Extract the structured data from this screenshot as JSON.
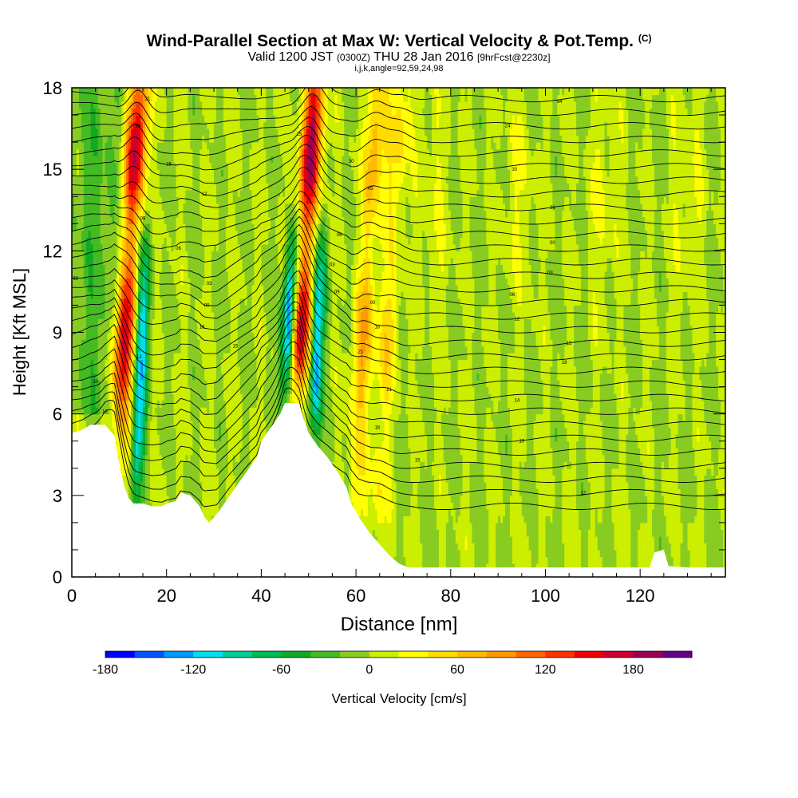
{
  "header": {
    "title": "Wind-Parallel Section at Max W: Vertical Velocity & Pot.Temp.",
    "title_mark": "(C)",
    "valid_prefix": "Valid 1200 JST",
    "valid_utc": "(0300Z)",
    "valid_date": "THU 28 Jan 2016",
    "forecast": "[9hrFcst@2230z]",
    "ijk": "i,j,k,angle=92,59,24,98"
  },
  "chart_data": {
    "type": "heatmap",
    "title": "Wind-Parallel Section at Max W: Vertical Velocity & Pot.Temp.",
    "xlabel": "Distance [nm]",
    "ylabel": "Height [Kft MSL]",
    "xlim": [
      0,
      138
    ],
    "ylim": [
      0,
      18
    ],
    "x_ticks": [
      0,
      20,
      40,
      60,
      80,
      100,
      120
    ],
    "y_ticks": [
      0,
      3,
      6,
      9,
      12,
      15,
      18
    ],
    "colorbar": {
      "label": "Vertical Velocity [cm/s]",
      "min": -180,
      "max": 220,
      "step": 20,
      "tick_values": [
        -180,
        -120,
        -60,
        0,
        60,
        120,
        180
      ],
      "tick_labels": [
        "-180",
        "-120",
        "-60",
        "0",
        "60",
        "120",
        "180"
      ],
      "colors": [
        "#0000ff",
        "#0055ff",
        "#0099ff",
        "#00ddee",
        "#00cc99",
        "#00bb55",
        "#11aa22",
        "#44bb22",
        "#88cc22",
        "#ccee00",
        "#ffff00",
        "#ffdd00",
        "#ffbb00",
        "#ff9900",
        "#ff6600",
        "#ff3300",
        "#ee0000",
        "#cc0033",
        "#990055",
        "#660088"
      ]
    },
    "terrain_kft": [
      [
        0,
        5.3
      ],
      [
        2,
        5.4
      ],
      [
        4,
        5.6
      ],
      [
        7,
        5.6
      ],
      [
        9,
        5.2
      ],
      [
        10,
        4.2
      ],
      [
        11,
        3.4
      ],
      [
        12,
        2.9
      ],
      [
        13,
        2.7
      ],
      [
        15,
        2.7
      ],
      [
        17,
        2.6
      ],
      [
        19,
        2.6
      ],
      [
        20,
        2.7
      ],
      [
        22,
        2.8
      ],
      [
        23,
        3.1
      ],
      [
        25,
        3.0
      ],
      [
        27,
        2.6
      ],
      [
        28,
        2.2
      ],
      [
        29,
        2.0
      ],
      [
        31,
        2.4
      ],
      [
        33,
        2.9
      ],
      [
        35,
        3.4
      ],
      [
        37,
        3.9
      ],
      [
        39,
        4.4
      ],
      [
        40,
        5.0
      ],
      [
        42,
        5.5
      ],
      [
        44,
        6.0
      ],
      [
        45,
        6.4
      ],
      [
        48,
        6.4
      ],
      [
        49,
        5.8
      ],
      [
        50,
        5.3
      ],
      [
        52,
        4.8
      ],
      [
        54,
        4.4
      ],
      [
        56,
        3.9
      ],
      [
        58,
        3.3
      ],
      [
        59,
        2.7
      ],
      [
        61,
        2.1
      ],
      [
        63,
        1.6
      ],
      [
        65,
        1.2
      ],
      [
        67,
        0.8
      ],
      [
        69,
        0.5
      ],
      [
        71,
        0.35
      ],
      [
        75,
        0.35
      ],
      [
        85,
        0.35
      ],
      [
        95,
        0.35
      ],
      [
        105,
        0.35
      ],
      [
        115,
        0.35
      ],
      [
        122,
        0.35
      ],
      [
        123,
        0.9
      ],
      [
        125,
        1.0
      ],
      [
        126,
        0.4
      ],
      [
        130,
        0.35
      ],
      [
        135,
        0.35
      ],
      [
        138,
        0.35
      ]
    ],
    "updraft_bands": [
      {
        "center_nm": 11.5,
        "peak_cm_s": 180
      },
      {
        "center_nm": 48.5,
        "peak_cm_s": 190
      },
      {
        "center_nm": 62,
        "peak_cm_s": 80
      },
      {
        "center_nm": 67,
        "peak_cm_s": 50
      }
    ],
    "downdraft_bands": [
      {
        "center_nm": 15,
        "peak_cm_s": -110
      },
      {
        "center_nm": 46,
        "peak_cm_s": -180
      },
      {
        "center_nm": 52,
        "peak_cm_s": -130
      }
    ],
    "contour_labels": [
      {
        "text": "21",
        "x_nm": 16,
        "y_kft": 17.6
      },
      {
        "text": "18",
        "x_nm": 14,
        "y_kft": 16.6
      },
      {
        "text": "15",
        "x_nm": 20.5,
        "y_kft": 15.2
      },
      {
        "text": "12",
        "x_nm": 28,
        "y_kft": 14.1
      },
      {
        "text": "09",
        "x_nm": 15,
        "y_kft": 13.2
      },
      {
        "text": "06",
        "x_nm": 22.5,
        "y_kft": 12.1
      },
      {
        "text": "03",
        "x_nm": 29,
        "y_kft": 10.8
      },
      {
        "text": "00",
        "x_nm": 28.5,
        "y_kft": 10.0
      },
      {
        "text": "12",
        "x_nm": 0.8,
        "y_kft": 11.0
      },
      {
        "text": "18",
        "x_nm": 27.5,
        "y_kft": 9.2
      },
      {
        "text": "15",
        "x_nm": 34.5,
        "y_kft": 8.5
      },
      {
        "text": "12",
        "x_nm": 14.2,
        "y_kft": 8.1
      },
      {
        "text": "10",
        "x_nm": 5,
        "y_kft": 7.2
      },
      {
        "text": "12",
        "x_nm": 7,
        "y_kft": 6.1
      },
      {
        "text": "15",
        "x_nm": 48,
        "y_kft": 16.3
      },
      {
        "text": "30",
        "x_nm": 59,
        "y_kft": 15.3
      },
      {
        "text": "45",
        "x_nm": 63,
        "y_kft": 14.3
      },
      {
        "text": "06",
        "x_nm": 56.5,
        "y_kft": 12.6
      },
      {
        "text": "03",
        "x_nm": 55,
        "y_kft": 11.5
      },
      {
        "text": "09",
        "x_nm": 56,
        "y_kft": 10.5
      },
      {
        "text": "00",
        "x_nm": 63.5,
        "y_kft": 10.1
      },
      {
        "text": "18",
        "x_nm": 64.5,
        "y_kft": 9.2
      },
      {
        "text": "21",
        "x_nm": 61,
        "y_kft": 8.3
      },
      {
        "text": "21",
        "x_nm": 67,
        "y_kft": 6.9
      },
      {
        "text": "18",
        "x_nm": 64.5,
        "y_kft": 5.5
      },
      {
        "text": "15",
        "x_nm": 73,
        "y_kft": 4.3
      },
      {
        "text": "84",
        "x_nm": 103,
        "y_kft": 17.5
      },
      {
        "text": "24",
        "x_nm": 92,
        "y_kft": 16.6
      },
      {
        "text": "30",
        "x_nm": 93.5,
        "y_kft": 15.0
      },
      {
        "text": "36",
        "x_nm": 101.5,
        "y_kft": 13.6
      },
      {
        "text": "00",
        "x_nm": 101.5,
        "y_kft": 12.3
      },
      {
        "text": "03",
        "x_nm": 101,
        "y_kft": 11.2
      },
      {
        "text": "06",
        "x_nm": 93,
        "y_kft": 10.4
      },
      {
        "text": "12",
        "x_nm": 94,
        "y_kft": 9.5
      },
      {
        "text": "15",
        "x_nm": 105,
        "y_kft": 8.6
      },
      {
        "text": "18",
        "x_nm": 104,
        "y_kft": 7.9
      },
      {
        "text": "14",
        "x_nm": 94,
        "y_kft": 6.5
      },
      {
        "text": "19",
        "x_nm": 95,
        "y_kft": 5.0
      },
      {
        "text": "12",
        "x_nm": 108,
        "y_kft": 3.1
      }
    ]
  }
}
